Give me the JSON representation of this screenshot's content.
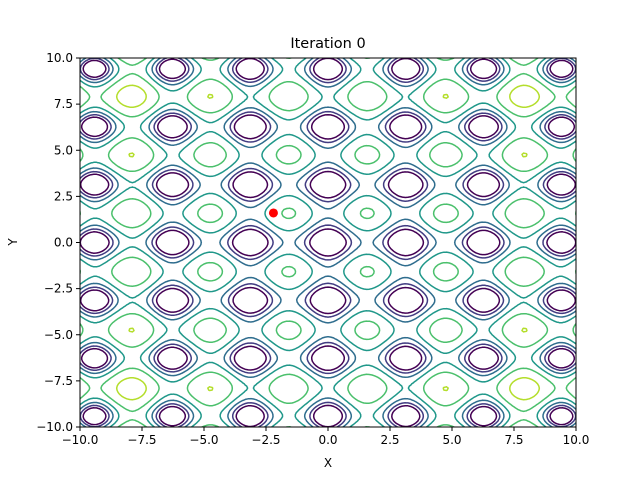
{
  "chart_data": {
    "type": "contour",
    "title": "Iteration 0",
    "xlabel": "X",
    "ylabel": "Y",
    "xlim": [
      -10,
      10
    ],
    "ylim": [
      -10,
      10
    ],
    "xticks": [
      -10,
      -7.5,
      -5,
      -2.5,
      0,
      2.5,
      5,
      7.5,
      10
    ],
    "yticks": [
      -10,
      -7.5,
      -5,
      -2.5,
      0,
      2.5,
      5,
      7.5,
      10
    ],
    "xtick_labels": [
      "−10.0",
      "−7.5",
      "−5.0",
      "−2.5",
      "0.0",
      "2.5",
      "5.0",
      "7.5",
      "10.0"
    ],
    "ytick_labels": [
      "−10.0",
      "−7.5",
      "−5.0",
      "−2.5",
      "0.0",
      "2.5",
      "5.0",
      "7.5",
      "10.0"
    ],
    "grid": false,
    "colormap": "viridis",
    "function_shape": "periodic cells with period ~3.14 on both axes; minimum near the origin",
    "point": {
      "x": -2.2,
      "y": 1.6,
      "color": "#ff0000"
    }
  }
}
